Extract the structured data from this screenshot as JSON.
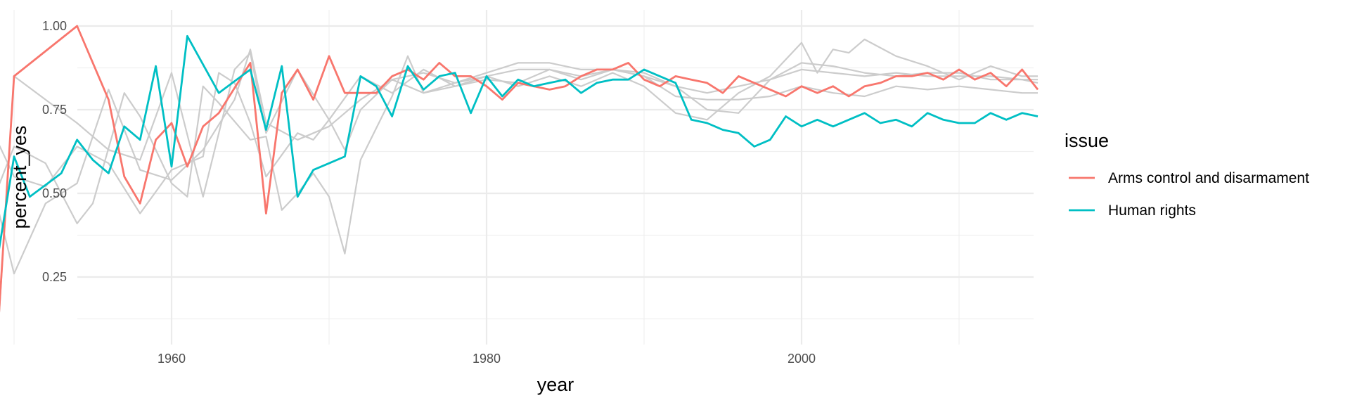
{
  "chart_data": {
    "type": "line",
    "title": "",
    "xlabel": "year",
    "ylabel": "percent_yes",
    "xlim": [
      1946,
      2015
    ],
    "ylim": [
      0.1,
      1.0
    ],
    "x_ticks": [
      1960,
      1980,
      2000
    ],
    "y_ticks": [
      0.25,
      0.5,
      0.75,
      1.0
    ],
    "x_tick_labels": [
      "1960",
      "1980",
      "2000"
    ],
    "y_tick_labels": [
      "0.25",
      "0.50",
      "0.75",
      "1.00"
    ],
    "grid": true,
    "legend": {
      "title": "issue",
      "position": "right",
      "entries": [
        "Arms control and disarmament",
        "Human rights"
      ]
    },
    "series": [
      {
        "name": "Arms control and disarmament",
        "color": "#F8766D",
        "highlighted": true,
        "x": [
          1948,
          1949,
          1950,
          1954,
          1956,
          1957,
          1958,
          1959,
          1960,
          1961,
          1962,
          1963,
          1965,
          1966,
          1967,
          1968,
          1969,
          1970,
          1971,
          1972,
          1973,
          1974,
          1975,
          1976,
          1977,
          1978,
          1979,
          1980,
          1981,
          1982,
          1983,
          1984,
          1985,
          1986,
          1987,
          1988,
          1989,
          1990,
          1991,
          1992,
          1993,
          1994,
          1995,
          1996,
          1997,
          1998,
          1999,
          2000,
          2001,
          2002,
          2003,
          2004,
          2005,
          2006,
          2007,
          2008,
          2009,
          2010,
          2011,
          2012,
          2013,
          2014,
          2015
        ],
        "y": [
          0.12,
          0.11,
          0.85,
          1.0,
          0.78,
          0.55,
          0.47,
          0.66,
          0.71,
          0.58,
          0.7,
          0.74,
          0.89,
          0.44,
          0.8,
          0.87,
          0.78,
          0.91,
          0.8,
          0.8,
          0.8,
          0.85,
          0.87,
          0.84,
          0.89,
          0.85,
          0.85,
          0.82,
          0.78,
          0.83,
          0.82,
          0.81,
          0.82,
          0.85,
          0.87,
          0.87,
          0.89,
          0.84,
          0.82,
          0.85,
          0.84,
          0.83,
          0.8,
          0.85,
          0.83,
          0.81,
          0.79,
          0.82,
          0.8,
          0.82,
          0.79,
          0.82,
          0.83,
          0.85,
          0.85,
          0.86,
          0.84,
          0.87,
          0.84,
          0.86,
          0.82,
          0.87,
          0.81
        ]
      },
      {
        "name": "Human rights",
        "color": "#00BFC4",
        "highlighted": true,
        "x": [
          1947,
          1948,
          1949,
          1950,
          1951,
          1953,
          1954,
          1955,
          1956,
          1957,
          1958,
          1959,
          1960,
          1961,
          1963,
          1965,
          1966,
          1967,
          1968,
          1969,
          1970,
          1971,
          1972,
          1973,
          1974,
          1975,
          1976,
          1977,
          1978,
          1979,
          1980,
          1981,
          1982,
          1983,
          1984,
          1985,
          1986,
          1987,
          1988,
          1989,
          1990,
          1991,
          1992,
          1993,
          1994,
          1995,
          1996,
          1997,
          1998,
          1999,
          2000,
          2001,
          2002,
          2003,
          2004,
          2005,
          2006,
          2007,
          2008,
          2009,
          2010,
          2011,
          2012,
          2013,
          2014,
          2015
        ],
        "y": [
          0.25,
          0.58,
          0.32,
          0.61,
          0.49,
          0.56,
          0.66,
          0.6,
          0.56,
          0.7,
          0.66,
          0.88,
          0.58,
          0.97,
          0.8,
          0.87,
          0.69,
          0.88,
          0.49,
          0.57,
          0.59,
          0.61,
          0.85,
          0.82,
          0.73,
          0.88,
          0.81,
          0.85,
          0.86,
          0.74,
          0.85,
          0.79,
          0.84,
          0.82,
          0.83,
          0.84,
          0.8,
          0.83,
          0.84,
          0.84,
          0.87,
          0.85,
          0.83,
          0.72,
          0.71,
          0.69,
          0.68,
          0.64,
          0.66,
          0.73,
          0.7,
          0.72,
          0.7,
          0.72,
          0.74,
          0.71,
          0.72,
          0.7,
          0.74,
          0.72,
          0.71,
          0.71,
          0.74,
          0.72,
          0.74,
          0.73
        ]
      },
      {
        "name": "",
        "color": "#cccccc",
        "highlighted": false,
        "x": [
          1947,
          1948,
          1949,
          1950,
          1952,
          1954,
          1956,
          1958,
          1960,
          1962,
          1964,
          1965,
          1966,
          1968,
          1970,
          1972,
          1974,
          1976,
          1978,
          1980,
          1982,
          1984,
          1986,
          1988,
          1990,
          1992,
          1994,
          1996,
          1998,
          2000,
          2002,
          2004,
          2006,
          2008,
          2010,
          2012,
          2014,
          2015
        ],
        "y": [
          0.79,
          0.66,
          0.45,
          0.26,
          0.47,
          0.53,
          0.81,
          0.57,
          0.54,
          0.63,
          0.78,
          0.93,
          0.71,
          0.66,
          0.7,
          0.78,
          0.84,
          0.86,
          0.83,
          0.85,
          0.87,
          0.87,
          0.85,
          0.87,
          0.86,
          0.82,
          0.8,
          0.82,
          0.84,
          0.87,
          0.86,
          0.85,
          0.86,
          0.85,
          0.85,
          0.85,
          0.84,
          0.84
        ]
      },
      {
        "name": "",
        "color": "#cccccc",
        "highlighted": false,
        "x": [
          1947,
          1948,
          1949,
          1950,
          1952,
          1954,
          1956,
          1958,
          1960,
          1962,
          1963,
          1964,
          1965,
          1966,
          1968,
          1969,
          1970,
          1971,
          1972,
          1974,
          1976,
          1978,
          1980,
          1982,
          1984,
          1986,
          1988,
          1990,
          1992,
          1994,
          1996,
          1998,
          2000,
          2002,
          2004,
          2006,
          2008,
          2010,
          2012,
          2014,
          2015
        ],
        "y": [
          0.68,
          0.47,
          0.65,
          0.55,
          0.52,
          0.64,
          0.59,
          0.44,
          0.57,
          0.61,
          0.86,
          0.83,
          0.71,
          0.55,
          0.68,
          0.66,
          0.72,
          0.63,
          0.75,
          0.84,
          0.8,
          0.83,
          0.86,
          0.89,
          0.89,
          0.87,
          0.87,
          0.85,
          0.82,
          0.75,
          0.74,
          0.84,
          0.89,
          0.88,
          0.86,
          0.85,
          0.86,
          0.86,
          0.84,
          0.84,
          0.83
        ]
      },
      {
        "name": "",
        "color": "#cccccc",
        "highlighted": false,
        "x": [
          1947,
          1948,
          1949,
          1950,
          1952,
          1954,
          1955,
          1957,
          1958,
          1960,
          1961,
          1962,
          1963,
          1965,
          1966,
          1967,
          1968,
          1969,
          1970,
          1971,
          1972,
          1974,
          1975,
          1976,
          1978,
          1980,
          1982,
          1984,
          1986,
          1988,
          1990,
          1992,
          1994,
          1996,
          1998,
          2000,
          2001,
          2002,
          2003,
          2004,
          2006,
          2008,
          2010,
          2012,
          2014,
          2015
        ],
        "y": [
          0.56,
          0.59,
          0.52,
          0.64,
          0.59,
          0.41,
          0.47,
          0.8,
          0.73,
          0.53,
          0.49,
          0.82,
          0.77,
          0.66,
          0.67,
          0.45,
          0.5,
          0.56,
          0.49,
          0.32,
          0.6,
          0.79,
          0.91,
          0.8,
          0.82,
          0.85,
          0.82,
          0.85,
          0.82,
          0.86,
          0.82,
          0.74,
          0.72,
          0.8,
          0.85,
          0.95,
          0.86,
          0.93,
          0.92,
          0.96,
          0.91,
          0.88,
          0.84,
          0.88,
          0.85,
          0.85
        ]
      },
      {
        "name": "",
        "color": "#cccccc",
        "highlighted": false,
        "x": [
          1948,
          1949,
          1950,
          1952,
          1954,
          1956,
          1958,
          1960,
          1962,
          1964,
          1965,
          1966,
          1968,
          1970,
          1972,
          1974,
          1976,
          1978,
          1980,
          1982,
          1984,
          1986,
          1988,
          1990,
          1992,
          1994,
          1996,
          1998,
          2000,
          2002,
          2004,
          2006,
          2008,
          2010,
          2012,
          2014,
          2015
        ],
        "y": [
          0.12,
          0.1,
          0.85,
          0.78,
          0.71,
          0.63,
          0.6,
          0.86,
          0.49,
          0.87,
          0.92,
          0.68,
          0.87,
          0.72,
          0.85,
          0.8,
          0.87,
          0.82,
          0.84,
          0.83,
          0.87,
          0.84,
          0.87,
          0.85,
          0.79,
          0.78,
          0.78,
          0.79,
          0.82,
          0.8,
          0.79,
          0.82,
          0.81,
          0.82,
          0.81,
          0.8,
          0.8
        ]
      }
    ]
  }
}
